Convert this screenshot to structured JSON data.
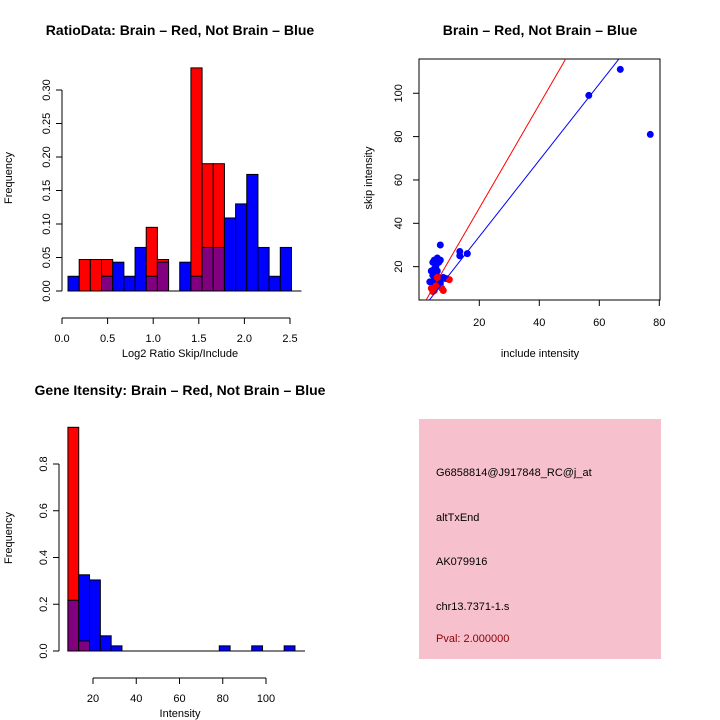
{
  "colors": {
    "red": "#ff0000",
    "blue": "#0000ff",
    "overlap": "#800080",
    "panel": "#f6c1cd",
    "pval": "#8b0000"
  },
  "chart_data": [
    {
      "type": "bar",
      "title": "RatioData: Brain – Red, Not Brain – Blue",
      "xlabel": "Log2 Ratio Skip/Include",
      "ylabel": "Frequency",
      "xlim": [
        0,
        2.6
      ],
      "ylim": [
        0,
        0.33
      ],
      "xticks": [
        "0.0",
        "0.5",
        "1.0",
        "1.5",
        "2.0",
        "2.5"
      ],
      "yticks": [
        "0.00",
        "0.05",
        "0.10",
        "0.15",
        "0.20",
        "0.25",
        "0.30"
      ],
      "bin_start": 0.066,
      "bin_width": 0.1225,
      "series": [
        {
          "name": "Brain",
          "color": "red",
          "values": [
            0,
            0.047,
            0.047,
            0.047,
            0,
            0,
            0,
            0.095,
            0.047,
            0,
            0,
            0.333,
            0.19,
            0.19,
            0,
            0,
            0,
            0,
            0,
            0
          ]
        },
        {
          "name": "Not Brain",
          "color": "blue",
          "values": [
            0.022,
            0,
            0,
            0.022,
            0.043,
            0.022,
            0.065,
            0.022,
            0.043,
            0,
            0.043,
            0.022,
            0.065,
            0.065,
            0.109,
            0.13,
            0.174,
            0.065,
            0.022,
            0.065
          ]
        }
      ]
    },
    {
      "type": "scatter",
      "title": "Brain – Red, Not Brain – Blue",
      "xlabel": "include intensity",
      "ylabel": "skip intensity",
      "xlim": [
        0,
        80
      ],
      "ylim": [
        4,
        116
      ],
      "xticks": [
        "20",
        "40",
        "60",
        "80"
      ],
      "yticks": [
        "20",
        "40",
        "60",
        "80",
        "100"
      ],
      "series": [
        {
          "name": "Brain",
          "color": "red",
          "points": [
            [
              4,
              10
            ],
            [
              5,
              9
            ],
            [
              4.5,
              8.5
            ],
            [
              8,
              9
            ],
            [
              7.5,
              10
            ],
            [
              10,
              14
            ],
            [
              5.5,
              11
            ],
            [
              6,
              15
            ]
          ],
          "fit": {
            "slope": 2.39,
            "intercept": -0.8
          }
        },
        {
          "name": "Not Brain",
          "color": "blue",
          "points": [
            [
              67,
              111
            ],
            [
              56.5,
              99
            ],
            [
              77,
              81
            ],
            [
              7,
              30
            ],
            [
              13.5,
              27
            ],
            [
              13.5,
              25
            ],
            [
              16,
              26
            ],
            [
              9,
              14.5
            ],
            [
              4,
              18
            ],
            [
              4.5,
              22
            ],
            [
              5,
              23
            ],
            [
              5.5,
              21
            ],
            [
              6,
              24
            ],
            [
              6.5,
              22
            ],
            [
              7,
              23
            ],
            [
              4,
              13
            ],
            [
              4.5,
              16
            ],
            [
              5,
              19
            ],
            [
              5.5,
              17
            ],
            [
              6,
              18
            ],
            [
              6.5,
              15
            ],
            [
              7,
              14
            ],
            [
              3.5,
              13
            ],
            [
              4.5,
              11
            ],
            [
              5,
              14
            ],
            [
              7,
              12
            ],
            [
              7.5,
              10
            ],
            [
              5.5,
              20
            ],
            [
              4.8,
              12
            ],
            [
              6.2,
              13
            ],
            [
              8,
              15
            ]
          ],
          "fit": {
            "slope": 1.76,
            "intercept": -1.3
          }
        }
      ]
    },
    {
      "type": "bar",
      "title": "Gene Itensity: Brain – Red, Not Brain – Blue",
      "xlabel": "Intensity",
      "ylabel": "Frequency",
      "xlim": [
        8,
        115
      ],
      "ylim": [
        0,
        0.96
      ],
      "xticks": [
        "20",
        "40",
        "60",
        "80",
        "100"
      ],
      "yticks": [
        "0.0",
        "0.2",
        "0.4",
        "0.6",
        "0.8"
      ],
      "bin_start": 8.4,
      "bin_width": 5,
      "series": [
        {
          "name": "Brain",
          "color": "red",
          "values": [
            0.957,
            0.043,
            0,
            0,
            0,
            0,
            0,
            0,
            0,
            0,
            0,
            0,
            0,
            0,
            0,
            0,
            0,
            0,
            0,
            0,
            0
          ]
        },
        {
          "name": "Not Brain",
          "color": "blue",
          "values": [
            0.217,
            0.326,
            0.304,
            0.065,
            0.022,
            0,
            0,
            0,
            0,
            0,
            0,
            0,
            0,
            0,
            0.022,
            0,
            0,
            0.022,
            0,
            0,
            0.022
          ]
        }
      ]
    }
  ],
  "info": {
    "probe": "G6858814@J917848_RC@j_at",
    "event": "altTxEnd",
    "accession": "AK079916",
    "locus": "chr13.7371-1.s",
    "pval": "Pval: 2.000000"
  }
}
